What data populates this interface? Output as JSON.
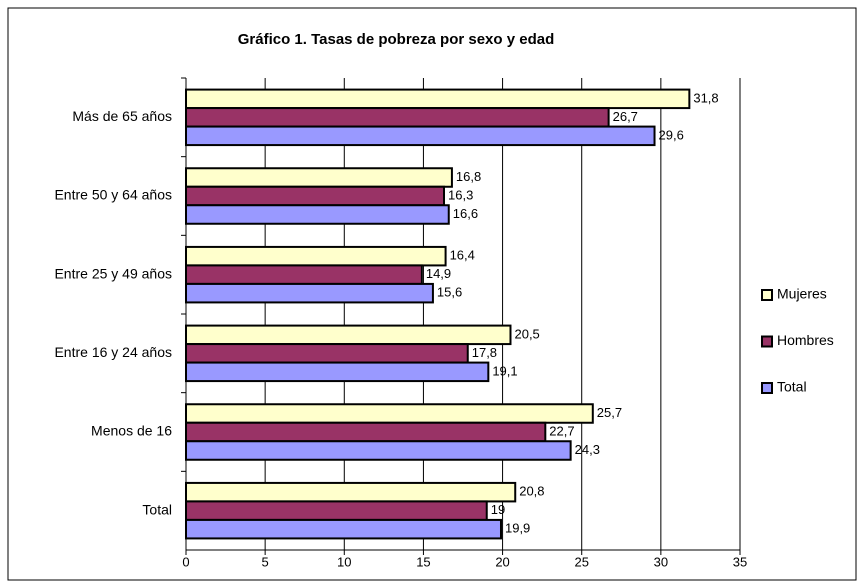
{
  "chart_data": {
    "type": "bar",
    "orientation": "horizontal",
    "title": "Gráfico 1. Tasas de pobreza por sexo y edad",
    "categories": [
      "Más de 65 años",
      "Entre 50 y 64 años",
      "Entre 25 y 49 años",
      "Entre 16 y 24 años",
      "Menos de 16",
      "Total"
    ],
    "series": [
      {
        "name": "Mujeres",
        "color": "#ffffcc",
        "values": [
          31.8,
          16.8,
          16.4,
          20.5,
          25.7,
          20.8
        ],
        "value_labels": [
          "31,8",
          "16,8",
          "16,4",
          "20,5",
          "25,7",
          "20,8"
        ]
      },
      {
        "name": "Hombres",
        "color": "#993366",
        "values": [
          26.7,
          16.3,
          14.9,
          17.8,
          22.7,
          19
        ],
        "value_labels": [
          "26,7",
          "16,3",
          "14,9",
          "17,8",
          "22,7",
          "19"
        ]
      },
      {
        "name": "Total",
        "color": "#9999ff",
        "values": [
          29.6,
          16.6,
          15.6,
          19.1,
          24.3,
          19.9
        ],
        "value_labels": [
          "29,6",
          "16,6",
          "15,6",
          "19,1",
          "24,3",
          "19,9"
        ]
      }
    ],
    "xlim": [
      0,
      35
    ],
    "xticks": [
      0,
      5,
      10,
      15,
      20,
      25,
      30,
      35
    ],
    "grid": true,
    "legend": "right"
  }
}
